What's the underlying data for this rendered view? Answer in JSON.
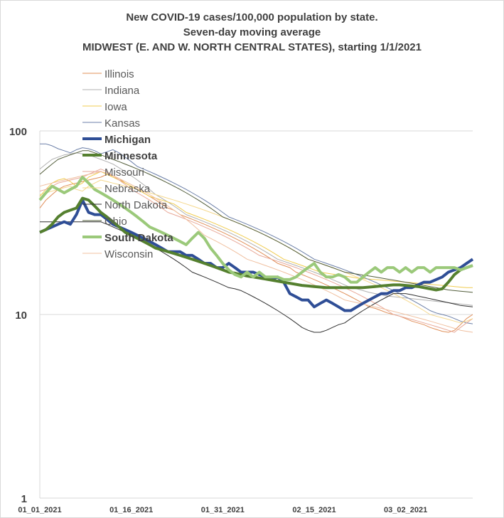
{
  "chart_data": {
    "type": "line",
    "title_lines": [
      "New COVID-19 cases/100,000 population by state.",
      "Seven-day moving average",
      "MIDWEST (E. AND W. NORTH CENTRAL STATES), starting 1/1/2021"
    ],
    "y_scale": "log",
    "ylim": [
      1,
      100
    ],
    "y_ticks": [
      {
        "value": 1,
        "label": "1"
      },
      {
        "value": 10,
        "label": "10"
      },
      {
        "value": 100,
        "label": "100"
      }
    ],
    "x_day_range": [
      0,
      71
    ],
    "x_ticks": [
      {
        "day": 0,
        "label": "01_01_2021"
      },
      {
        "day": 15,
        "label": "01_16_2021"
      },
      {
        "day": 30,
        "label": "01_31_2021"
      },
      {
        "day": 45,
        "label": "02_15_2021"
      },
      {
        "day": 60,
        "label": "03_02_2021"
      }
    ],
    "grid": true,
    "legend_position": "top-left inside",
    "series": [
      {
        "name": "Illinois",
        "color": "#e0905a",
        "width": 1,
        "bold": false,
        "values": [
          38,
          42,
          45,
          48,
          50,
          51,
          52,
          53,
          54,
          55,
          56,
          58,
          57,
          55,
          52,
          50,
          48,
          46,
          44,
          42,
          40,
          38,
          37,
          35,
          34,
          33,
          32,
          31,
          30,
          29,
          28,
          27,
          26,
          25,
          24,
          23,
          22,
          21,
          20,
          19,
          18.5,
          18,
          17,
          16.5,
          16,
          15.5,
          15,
          14.5,
          14,
          13.5,
          13,
          12.5,
          12,
          11.5,
          11,
          10.8,
          10.5,
          10.2,
          10,
          9.8,
          9.5,
          9.2,
          9,
          8.8,
          8.5,
          8.3,
          8.1,
          8,
          8.2,
          8.8,
          9.5,
          10
        ]
      },
      {
        "name": "Indiana",
        "color": "#b0b0b0",
        "width": 1,
        "bold": false,
        "values": [
          62,
          66,
          70,
          72,
          74,
          75,
          76,
          75,
          74,
          72,
          70,
          68,
          66,
          63,
          60,
          57,
          54,
          51,
          48,
          45,
          43,
          41,
          39,
          37,
          35,
          34,
          33,
          32,
          31,
          30,
          29,
          28,
          27,
          26,
          25,
          24,
          23,
          22,
          21,
          20,
          19.5,
          19,
          18.5,
          18,
          17.5,
          17,
          16.5,
          16,
          15.5,
          15,
          14.5,
          14,
          13.8,
          13.5,
          13.2,
          13,
          12.8,
          12.6,
          12.5,
          12.4,
          12.3,
          12.2,
          12.1,
          12,
          11.9,
          11.8,
          11.7,
          11.6,
          11.5,
          11.4,
          11.3,
          11.2
        ]
      },
      {
        "name": "Iowa",
        "color": "#f0cc50",
        "width": 1,
        "bold": false,
        "values": [
          44,
          48,
          52,
          54,
          55,
          53,
          50,
          52,
          56,
          58,
          60,
          58,
          56,
          54,
          52,
          50,
          48,
          46,
          44,
          43,
          42,
          41,
          40,
          38,
          36,
          35,
          34,
          33,
          32,
          31,
          30,
          29,
          28,
          27,
          26,
          25,
          24,
          23,
          22,
          21,
          20,
          19.5,
          19,
          18.5,
          18,
          17.5,
          17,
          16.8,
          16.6,
          16.4,
          16.2,
          16,
          15.8,
          15.7,
          15.6,
          15.5,
          15.4,
          15.3,
          15.2,
          15.1,
          15,
          14.9,
          14.8,
          14.7,
          14.6,
          14.5,
          14.4,
          14.3,
          14.2,
          14.1,
          14,
          14
        ]
      },
      {
        "name": "Kansas",
        "color": "#6b7fa8",
        "width": 1,
        "bold": false,
        "values": [
          85,
          85,
          83,
          80,
          78,
          76,
          79,
          81,
          80,
          78,
          75,
          77,
          79,
          76,
          72,
          68,
          64,
          62,
          60,
          58,
          56,
          54,
          52,
          50,
          48,
          46,
          44,
          42,
          40,
          38,
          36,
          34,
          33,
          32,
          31,
          30,
          29,
          28,
          27,
          26,
          25,
          24,
          23,
          22,
          21,
          20,
          19.5,
          19,
          18.5,
          18,
          17.5,
          17,
          16.5,
          16,
          15.5,
          15,
          14.5,
          14,
          13.5,
          13,
          12.5,
          12,
          11.5,
          11,
          10.5,
          10.2,
          10,
          9.8,
          9.5,
          9.2,
          9,
          8.9
        ]
      },
      {
        "name": "Michigan",
        "color": "#2f4e96",
        "width": 4,
        "bold": true,
        "values": [
          28,
          29,
          30,
          31,
          32,
          31,
          35,
          42,
          36,
          35,
          35,
          33,
          31,
          30,
          29,
          28,
          27,
          26,
          25,
          24,
          23,
          22,
          22,
          22,
          21,
          21,
          20,
          19,
          19,
          18,
          18,
          19,
          18,
          17,
          17,
          17,
          16.5,
          16,
          15.5,
          16,
          15,
          13,
          12.5,
          12,
          12,
          11,
          11.5,
          12,
          11.5,
          11,
          10.5,
          10.5,
          11,
          11.5,
          12,
          12.5,
          13,
          13,
          13.5,
          13.5,
          14,
          14,
          14.5,
          15,
          15,
          15.5,
          16,
          17,
          17.5,
          18,
          19,
          20
        ]
      },
      {
        "name": "Minnesota",
        "color": "#55802f",
        "width": 4,
        "bold": true,
        "values": [
          28,
          29,
          31,
          34,
          36,
          37,
          38,
          43,
          42,
          39,
          36,
          34,
          32,
          30,
          28,
          27,
          26,
          25,
          24,
          23,
          22.5,
          22,
          21.5,
          21,
          20.5,
          20,
          19.5,
          19,
          18.5,
          18,
          17.5,
          17,
          16.8,
          16.5,
          16.2,
          16,
          15.8,
          15.6,
          15.4,
          15.2,
          15,
          14.8,
          14.6,
          14.4,
          14.3,
          14.2,
          14.1,
          14,
          14,
          14,
          14,
          14,
          14,
          14,
          14.1,
          14.2,
          14.3,
          14.4,
          14.5,
          14.5,
          14.4,
          14.3,
          14.2,
          14,
          13.8,
          13.6,
          13.8,
          15,
          16.5,
          17.5,
          18,
          18.5
        ]
      },
      {
        "name": "Missouri",
        "color": "#e8a898",
        "width": 1,
        "bold": false,
        "values": [
          47,
          48,
          50,
          52,
          53,
          54,
          55,
          56,
          58,
          60,
          62,
          60,
          57,
          54,
          51,
          48,
          46,
          44,
          42,
          40,
          38,
          36,
          35,
          34,
          33,
          32,
          31,
          30,
          29,
          28,
          27,
          26,
          25,
          24,
          23,
          22,
          21,
          20.5,
          20,
          19.5,
          19,
          18.5,
          18,
          17.5,
          17,
          16.5,
          16,
          15.5,
          15,
          14.5,
          14,
          13.5,
          13,
          12.5,
          12,
          11.5,
          11,
          10.5,
          10,
          9.8,
          9.6,
          9.4,
          9.2,
          9,
          8.8,
          8.6,
          8.4,
          8.2,
          8,
          8.5,
          9,
          9.5
        ]
      },
      {
        "name": "Nebraska",
        "color": "#f5d88c",
        "width": 1,
        "bold": false,
        "values": [
          45,
          46,
          47,
          48,
          49,
          50,
          48,
          47,
          50,
          52,
          54,
          53,
          52,
          51,
          50,
          49,
          48,
          47,
          46,
          45,
          44,
          43,
          42,
          41,
          40,
          39,
          38,
          37,
          36,
          35,
          34,
          33,
          32,
          31,
          30,
          29,
          28,
          27,
          26,
          25,
          24,
          23,
          22,
          21,
          20,
          19.5,
          19,
          18.5,
          18,
          17.5,
          17,
          16.5,
          16,
          15.5,
          15,
          14.5,
          14,
          13.5,
          13,
          12.5,
          12,
          11.5,
          11,
          10.5,
          10,
          9.8,
          9.6,
          9.4,
          9.2,
          9,
          9.2,
          9.5
        ]
      },
      {
        "name": "North Dakota",
        "color": "#303030",
        "width": 1,
        "bold": false,
        "values": [
          32,
          32,
          32,
          32,
          32,
          32,
          32,
          32,
          32,
          32,
          32,
          31,
          30,
          29,
          28,
          27,
          26,
          25,
          24,
          23,
          22,
          21,
          20,
          19,
          18,
          17,
          16.5,
          16,
          15.5,
          15,
          14.5,
          14,
          13.8,
          13.5,
          13,
          12.5,
          12,
          11.5,
          11,
          10.5,
          10,
          9.5,
          9,
          8.5,
          8.2,
          8,
          8,
          8.2,
          8.5,
          8.8,
          9,
          9.5,
          10,
          10.5,
          11,
          11.5,
          12,
          12.5,
          13,
          13,
          13,
          12.8,
          12.6,
          12.4,
          12.2,
          12,
          11.8,
          11.6,
          11.4,
          11.2,
          11.1,
          11
        ]
      },
      {
        "name": "Ohio",
        "color": "#525d3a",
        "width": 1,
        "bold": false,
        "values": [
          58,
          62,
          66,
          70,
          72,
          74,
          76,
          78,
          78,
          76,
          74,
          72,
          70,
          68,
          66,
          64,
          62,
          60,
          58,
          56,
          54,
          52,
          50,
          48,
          46,
          44,
          42,
          40,
          38,
          36,
          34,
          33,
          32,
          31,
          30,
          29,
          28,
          27,
          26,
          25,
          24,
          23,
          22,
          21,
          20,
          19.5,
          19,
          18.5,
          18,
          17.5,
          17,
          16.8,
          16.6,
          16.4,
          16.2,
          16,
          15.8,
          15.6,
          15.4,
          15.2,
          15,
          14.8,
          14.6,
          14.4,
          14.2,
          14,
          13.8,
          13.6,
          13.5,
          13.4,
          13.3,
          13.2
        ]
      },
      {
        "name": "South Dakota",
        "color": "#9bc97a",
        "width": 4,
        "bold": true,
        "values": [
          42,
          46,
          50,
          48,
          46,
          48,
          50,
          56,
          52,
          48,
          46,
          44,
          42,
          40,
          38,
          36,
          34,
          32,
          30,
          29,
          28,
          27,
          26,
          25,
          24,
          26,
          28,
          26,
          23,
          21,
          19,
          17.5,
          16.5,
          16,
          17,
          16,
          17,
          16,
          16,
          16,
          15.5,
          15.5,
          16,
          17,
          18,
          19,
          17,
          16,
          16,
          16.5,
          16,
          15,
          15,
          16,
          17,
          18,
          17,
          18,
          18,
          17,
          18,
          17,
          18,
          18,
          17,
          18,
          18,
          18,
          18,
          17.5,
          18,
          18.5
        ]
      },
      {
        "name": "Wisconsin",
        "color": "#f0c0a0",
        "width": 1,
        "bold": false,
        "values": [
          50,
          51,
          52,
          53,
          54,
          55,
          56,
          57,
          58,
          59,
          60,
          59,
          57,
          55,
          53,
          51,
          49,
          47,
          45,
          43,
          41,
          39,
          37,
          35,
          33,
          31,
          29,
          27,
          26,
          25,
          24,
          23,
          22,
          21,
          20,
          19.5,
          19,
          18.5,
          18,
          17.5,
          17,
          16.5,
          16,
          15.5,
          15,
          14.5,
          14,
          13.5,
          13,
          12.5,
          12,
          11.8,
          11.6,
          11.4,
          11.2,
          11,
          10.8,
          10.6,
          10.4,
          10.2,
          10,
          9.8,
          9.6,
          9.4,
          9.2,
          9,
          8.8,
          8.6,
          8.4,
          8.2,
          8.1,
          8
        ]
      }
    ]
  }
}
